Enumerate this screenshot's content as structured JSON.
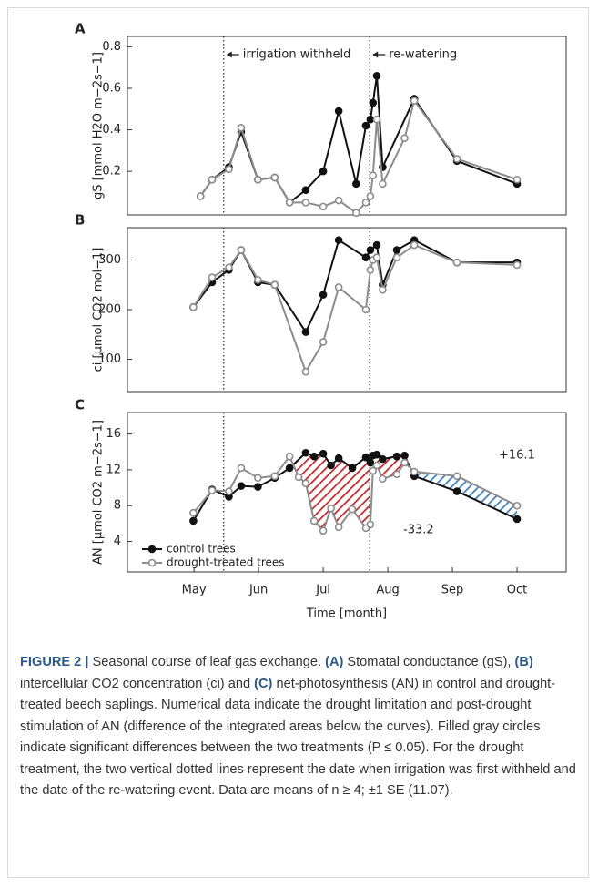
{
  "chart_data": [
    {
      "type": "line",
      "title": "A",
      "ylabel": "gS [mmol H2O m−2s−1]",
      "xlim": [
        3.97,
        10.76
      ],
      "ylim": [
        -0.01,
        0.85
      ],
      "yticks": [
        0.2,
        0.4,
        0.6,
        0.8
      ],
      "vlines": [
        5.46,
        7.72
      ],
      "annotations": [
        "irrigation withheld",
        "re-watering"
      ],
      "series": [
        {
          "color": "#111111",
          "marker_fill": "#111111",
          "x": [
            5.1,
            5.28,
            5.54,
            5.73,
            5.99,
            6.25,
            6.48,
            6.73,
            7.0,
            7.24,
            7.51,
            7.66,
            7.73,
            7.77,
            7.83,
            7.92,
            8.41,
            9.07,
            10.0
          ],
          "values": [
            0.08,
            0.16,
            0.22,
            0.39,
            0.16,
            0.17,
            0.05,
            0.11,
            0.2,
            0.49,
            0.14,
            0.42,
            0.45,
            0.53,
            0.66,
            0.22,
            0.55,
            0.25,
            0.14
          ]
        },
        {
          "color": "#8c8c8c",
          "marker_fill": "#ffffff",
          "x": [
            5.1,
            5.28,
            5.54,
            5.73,
            5.99,
            6.25,
            6.48,
            6.73,
            7.0,
            7.24,
            7.51,
            7.66,
            7.73,
            7.77,
            7.83,
            7.92,
            8.26,
            8.41,
            9.07,
            10.0
          ],
          "values": [
            0.08,
            0.16,
            0.21,
            0.41,
            0.16,
            0.17,
            0.05,
            0.05,
            0.03,
            0.06,
            0.0,
            0.05,
            0.08,
            0.18,
            0.45,
            0.14,
            0.36,
            0.54,
            0.26,
            0.16
          ]
        }
      ]
    },
    {
      "type": "line",
      "title": "B",
      "ylabel": "ci [µmol CO2 mol−1]",
      "xlim": [
        3.97,
        10.76
      ],
      "ylim": [
        35,
        365
      ],
      "yticks": [
        100,
        200,
        300
      ],
      "vlines": [
        5.46,
        7.72
      ],
      "series": [
        {
          "color": "#111111",
          "marker_fill": "#111111",
          "x": [
            4.99,
            5.28,
            5.54,
            5.73,
            5.99,
            6.25,
            6.73,
            7.0,
            7.24,
            7.66,
            7.73,
            7.83,
            7.92,
            8.14,
            8.41,
            9.07,
            10.0
          ],
          "values": [
            205,
            255,
            280,
            320,
            255,
            250,
            155,
            230,
            340,
            305,
            320,
            330,
            250,
            320,
            340,
            295,
            295
          ]
        },
        {
          "color": "#8c8c8c",
          "marker_fill": "#ffffff",
          "x": [
            4.99,
            5.28,
            5.54,
            5.73,
            5.99,
            6.25,
            6.73,
            7.0,
            7.24,
            7.66,
            7.73,
            7.77,
            7.83,
            7.92,
            8.14,
            8.41,
            9.07,
            10.0
          ],
          "values": [
            205,
            265,
            285,
            320,
            260,
            250,
            75,
            135,
            245,
            200,
            280,
            300,
            305,
            240,
            305,
            330,
            295,
            290
          ]
        }
      ]
    },
    {
      "type": "line",
      "title": "C",
      "ylabel": "AN [µmol CO2 m−2s−1]",
      "xlabel": "Time [month]",
      "xlim": [
        3.97,
        10.76
      ],
      "ylim": [
        0.6,
        18.4
      ],
      "yticks": [
        4,
        8,
        12,
        16
      ],
      "xticks": [
        {
          "value": 5,
          "label": "May"
        },
        {
          "value": 6,
          "label": "Jun"
        },
        {
          "value": 7,
          "label": "Jul"
        },
        {
          "value": 8,
          "label": "Aug"
        },
        {
          "value": 9,
          "label": "Sep"
        },
        {
          "value": 10,
          "label": "Oct"
        }
      ],
      "vlines": [
        5.46,
        7.72
      ],
      "annotations": [
        "-33.2",
        "+16.1"
      ],
      "shaded": [
        {
          "from": 6.55,
          "to": 7.72,
          "color": "#c0282d"
        },
        {
          "from": 7.77,
          "to": 8.3,
          "color": "#c0282d"
        },
        {
          "from": 8.41,
          "to": 10.0,
          "color": "#3a7fc0"
        }
      ],
      "series": [
        {
          "name": "control trees",
          "color": "#111111",
          "marker_fill": "#111111",
          "x": [
            4.99,
            5.28,
            5.54,
            5.73,
            5.99,
            6.25,
            6.48,
            6.73,
            6.86,
            7.0,
            7.12,
            7.24,
            7.45,
            7.66,
            7.73,
            7.77,
            7.83,
            7.92,
            8.14,
            8.26,
            8.41,
            9.07,
            10.0
          ],
          "values": [
            6.3,
            9.8,
            9.0,
            10.2,
            10.1,
            11.1,
            12.2,
            13.9,
            13.5,
            13.8,
            12.5,
            13.3,
            12.2,
            13.4,
            12.8,
            13.6,
            13.7,
            13.2,
            13.5,
            13.6,
            11.3,
            9.6,
            6.5
          ]
        },
        {
          "name": "drought-treated trees",
          "color": "#8c8c8c",
          "marker_fill": "#ffffff",
          "x": [
            4.99,
            5.28,
            5.54,
            5.73,
            5.99,
            6.25,
            6.48,
            6.62,
            6.73,
            6.86,
            7.0,
            7.12,
            7.24,
            7.45,
            7.66,
            7.73,
            7.77,
            7.83,
            7.92,
            8.14,
            8.26,
            8.41,
            9.07,
            10.0
          ],
          "values": [
            7.2,
            9.7,
            9.6,
            12.2,
            11.1,
            11.3,
            13.5,
            11.2,
            10.5,
            6.3,
            5.2,
            7.7,
            5.6,
            7.6,
            5.5,
            5.9,
            11.9,
            12.5,
            11.0,
            11.5,
            12.8,
            11.8,
            11.3,
            8.0
          ]
        }
      ]
    }
  ],
  "caption": {
    "segments": [
      {
        "text": "FIGURE 2 |",
        "bold": true
      },
      {
        "text": " Seasonal course of leaf gas exchange. "
      },
      {
        "text": "(A)",
        "bold": true
      },
      {
        "text": " Stomatal conductance (gS), "
      },
      {
        "text": "(B)",
        "bold": true
      },
      {
        "text": " intercellular CO2 concentration (ci) and "
      },
      {
        "text": "(C)",
        "bold": true
      },
      {
        "text": " net-photosynthesis (AN) in control and drought-treated beech saplings. Numerical data indicate the drought limitation and post-drought stimulation of AN (difference of the integrated areas below the curves). Filled gray circles indicate significant differences between the two treatments (P ≤ 0.05). For the drought treatment, the two vertical dotted lines represent the date when irrigation was first withheld and the date of the re-watering event. Data are means of n ≥ 4; ±1 SE (11.07)."
      }
    ]
  }
}
